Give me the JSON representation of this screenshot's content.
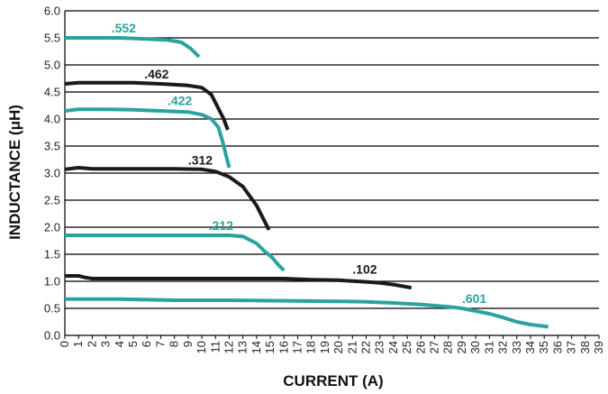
{
  "chart_data": {
    "type": "line",
    "title": "",
    "xlabel": "CURRENT (A)",
    "ylabel": "INDUCTANCE (μH)",
    "xlim": [
      0,
      39
    ],
    "ylim": [
      0,
      6.0
    ],
    "x_ticks": [
      0,
      1,
      2,
      3,
      4,
      5,
      6,
      7,
      8,
      9,
      10,
      11,
      12,
      13,
      14,
      15,
      16,
      17,
      18,
      19,
      20,
      21,
      22,
      23,
      24,
      25,
      26,
      27,
      28,
      29,
      30,
      31,
      32,
      33,
      34,
      35,
      36,
      37,
      38,
      39
    ],
    "x_tick_labels": [
      "0",
      "1",
      "2",
      "3",
      "4",
      "5",
      "6",
      "7",
      "8",
      "9",
      "10",
      "11",
      "12",
      "13",
      "14",
      "15",
      "16",
      "17",
      "18",
      "19",
      "20",
      "21",
      "22",
      "23",
      "24",
      "25",
      "26",
      "27",
      "28",
      "29",
      "30",
      "31",
      "32",
      "33",
      "34",
      "35",
      "36",
      "37",
      "38",
      "39"
    ],
    "y_ticks": [
      0,
      0.5,
      1.0,
      1.5,
      2.0,
      2.5,
      3.0,
      3.5,
      4.0,
      4.5,
      5.0,
      5.5,
      6.0
    ],
    "y_tick_labels": [
      "0.0",
      "0.5",
      "1.0",
      "1.5",
      "2.0",
      "2.5",
      "3.0",
      "3.5",
      "4.0",
      "4.5",
      "5.0",
      "5.5",
      "6.0"
    ],
    "grid": "horizontal",
    "colors": {
      "teal": "#2aa39f",
      "black": "#1a1a1a",
      "grid": "#000000"
    },
    "series": [
      {
        "name": ".552",
        "color": "#2aa39f",
        "x": [
          0,
          2,
          4,
          6,
          7.5,
          8.5,
          9.2,
          9.8
        ],
        "y": [
          5.5,
          5.5,
          5.5,
          5.48,
          5.46,
          5.42,
          5.3,
          5.15
        ]
      },
      {
        "name": ".462",
        "color": "#1a1a1a",
        "x": [
          0,
          1,
          3,
          5,
          7,
          9,
          10,
          10.7,
          11.2,
          11.6,
          11.9
        ],
        "y": [
          4.65,
          4.67,
          4.67,
          4.67,
          4.65,
          4.62,
          4.58,
          4.45,
          4.2,
          4.0,
          3.8
        ]
      },
      {
        "name": ".422",
        "color": "#2aa39f",
        "x": [
          0,
          1,
          3,
          5,
          7,
          9,
          10,
          10.7,
          11.2,
          11.5,
          11.8,
          12.0
        ],
        "y": [
          4.15,
          4.18,
          4.18,
          4.17,
          4.15,
          4.13,
          4.08,
          4.0,
          3.85,
          3.6,
          3.3,
          3.1
        ]
      },
      {
        "name": ".312",
        "color": "#1a1a1a",
        "x": [
          0,
          1,
          2,
          4,
          6,
          8,
          10,
          11,
          12,
          13,
          14,
          14.5,
          14.9
        ],
        "y": [
          3.07,
          3.1,
          3.08,
          3.08,
          3.08,
          3.08,
          3.07,
          3.03,
          2.93,
          2.75,
          2.4,
          2.15,
          1.95
        ]
      },
      {
        "name": ".212",
        "color": "#2aa39f",
        "x": [
          0,
          2,
          4,
          6,
          8,
          10,
          11,
          12,
          13,
          14,
          14.6,
          15.1,
          15.6,
          16.0
        ],
        "y": [
          1.85,
          1.85,
          1.85,
          1.85,
          1.85,
          1.85,
          1.85,
          1.85,
          1.83,
          1.7,
          1.55,
          1.45,
          1.3,
          1.2
        ]
      },
      {
        "name": ".102",
        "color": "#1a1a1a",
        "x": [
          0,
          1,
          1.5,
          2,
          4,
          6,
          8,
          10,
          12,
          14,
          16,
          18,
          20,
          22,
          23,
          24,
          25.3
        ],
        "y": [
          1.1,
          1.1,
          1.07,
          1.05,
          1.05,
          1.05,
          1.05,
          1.05,
          1.05,
          1.05,
          1.05,
          1.03,
          1.02,
          0.99,
          0.97,
          0.94,
          0.88
        ]
      },
      {
        "name": ".601",
        "color": "#2aa39f",
        "x": [
          0,
          4,
          8,
          12,
          16,
          20,
          22,
          24,
          26,
          27,
          28,
          29,
          30,
          31,
          32,
          33,
          34,
          35.3
        ],
        "y": [
          0.67,
          0.67,
          0.65,
          0.65,
          0.64,
          0.63,
          0.62,
          0.6,
          0.57,
          0.55,
          0.53,
          0.5,
          0.45,
          0.4,
          0.33,
          0.25,
          0.2,
          0.16
        ]
      }
    ],
    "annotations": [
      {
        "text": ".552",
        "color": "#2aa39f",
        "x": 3.4,
        "y": 5.6
      },
      {
        "text": ".462",
        "color": "#1a1a1a",
        "x": 5.8,
        "y": 4.75
      },
      {
        "text": ".422",
        "color": "#2aa39f",
        "x": 7.5,
        "y": 4.26
      },
      {
        "text": ".312",
        "color": "#1a1a1a",
        "x": 9.0,
        "y": 3.16
      },
      {
        "text": ".212",
        "color": "#2aa39f",
        "x": 10.5,
        "y": 1.95
      },
      {
        "text": ".102",
        "color": "#1a1a1a",
        "x": 21.0,
        "y": 1.14
      },
      {
        "text": ".601",
        "color": "#2aa39f",
        "x": 29.0,
        "y": 0.6
      }
    ]
  }
}
